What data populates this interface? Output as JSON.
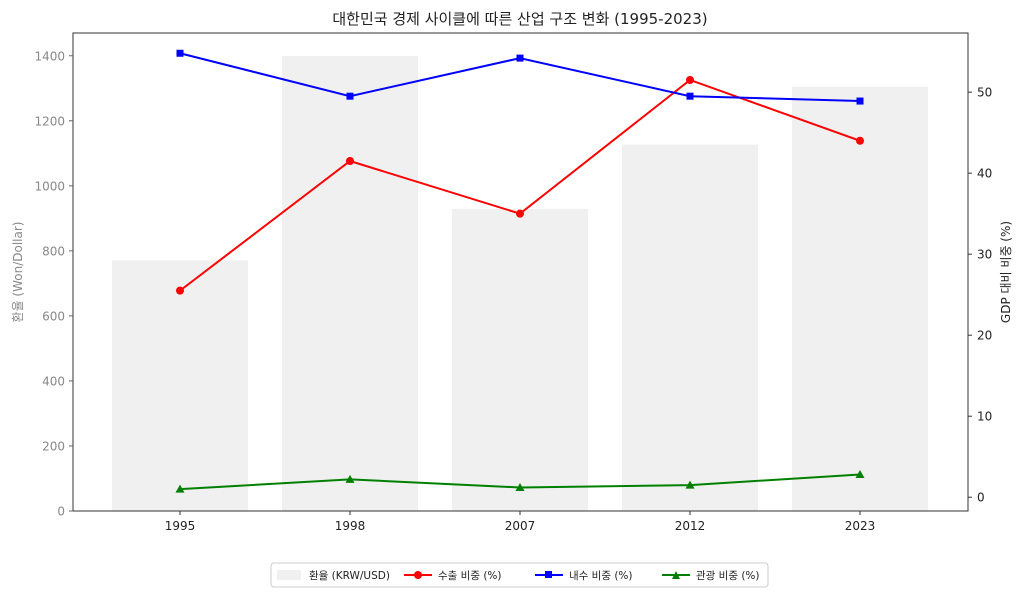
{
  "chart_data": {
    "type": "bar+line",
    "title": "대한민국 경제 사이클에 따른 산업 구조 변화 (1995-2023)",
    "categories": [
      "1995",
      "1998",
      "2007",
      "2012",
      "2023"
    ],
    "left_axis": {
      "label": "환율 (Won/Dollar)",
      "range": [
        0,
        1470
      ],
      "ticks": [
        "0",
        "200",
        "400",
        "600",
        "800",
        "1000",
        "1200",
        "1400"
      ]
    },
    "right_axis": {
      "label": "GDP 대비 비중 (%)",
      "range": [
        -1.7,
        57.3
      ],
      "ticks": [
        "0",
        "10",
        "20",
        "30",
        "40",
        "50"
      ]
    },
    "bars": {
      "name": "환율 (KRW/USD)",
      "color": "#f0f0f0",
      "values": [
        771,
        1399,
        929,
        1127,
        1305
      ]
    },
    "series": [
      {
        "name": "수출 비중 (%)",
        "color": "#ff0000",
        "marker": "circle",
        "values": [
          25.5,
          41.5,
          35.0,
          51.5,
          44.0
        ]
      },
      {
        "name": "내수 비중 (%)",
        "color": "#0000ff",
        "marker": "square",
        "values": [
          54.8,
          49.5,
          54.2,
          49.5,
          48.9
        ]
      },
      {
        "name": "관광 비중 (%)",
        "color": "#008000",
        "marker": "triangle",
        "values": [
          1.0,
          2.2,
          1.2,
          1.5,
          2.8
        ]
      }
    ],
    "grid": false,
    "legend": "bottom-center"
  }
}
